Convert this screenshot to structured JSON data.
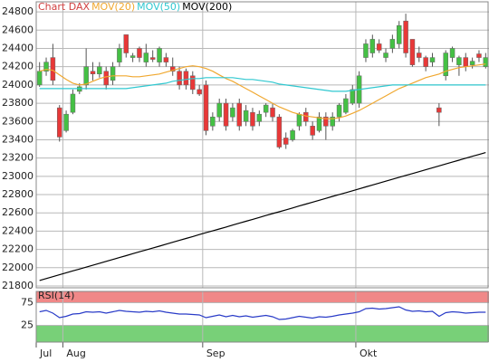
{
  "chart_data": [
    {
      "type": "candlestick",
      "categories": [
        null,
        null,
        null,
        null,
        "Aug",
        null,
        null,
        null,
        null,
        null,
        null,
        null,
        null,
        null,
        null,
        null,
        null,
        null,
        null,
        null,
        null,
        null,
        null,
        null,
        null,
        "Sep",
        null,
        null,
        null,
        null,
        null,
        null,
        null,
        null,
        null,
        null,
        null,
        null,
        null,
        null,
        null,
        null,
        null,
        null,
        null,
        null,
        null,
        null,
        "Okt",
        null,
        null,
        null,
        null,
        null,
        null,
        null,
        null,
        null,
        null,
        null,
        null,
        null,
        null,
        null,
        null,
        null,
        null,
        null
      ],
      "first_label": "Jul",
      "series": [
        {
          "name": "Chart DAX",
          "color": "#d04040",
          "up_color": "#44c044",
          "down_color": "#e83838",
          "open": [
            24000,
            24150,
            24300,
            23750,
            23500,
            23700,
            23930,
            24000,
            24150,
            24120,
            24150,
            24050,
            24250,
            24550,
            24300,
            24400,
            24250,
            24300,
            24250,
            24300,
            24200,
            24150,
            24150,
            24100,
            23950,
            24000,
            23550,
            23650,
            23800,
            23650,
            23800,
            23600,
            23700,
            23600,
            23700,
            23750,
            23650,
            23420,
            23400,
            23550,
            23700,
            23550,
            23500,
            23650,
            23550,
            23650,
            23700,
            23800,
            23800,
            24300,
            24350,
            24450,
            24300,
            24400,
            24450,
            24700,
            24500,
            24350,
            24300,
            24250,
            23750,
            24100,
            24300,
            24220,
            24300,
            24220,
            24340,
            24200
          ],
          "high": [
            24250,
            24300,
            24450,
            23780,
            23720,
            23950,
            24020,
            24400,
            24250,
            24250,
            24200,
            24250,
            24450,
            24550,
            24350,
            24420,
            24450,
            24380,
            24420,
            24350,
            24300,
            24200,
            24180,
            24150,
            24000,
            24050,
            23700,
            23850,
            23850,
            23800,
            23850,
            23780,
            23750,
            23720,
            23800,
            23800,
            23680,
            23480,
            23520,
            23700,
            23750,
            23600,
            23700,
            23700,
            23700,
            23800,
            23900,
            24000,
            24150,
            24500,
            24550,
            24500,
            24400,
            24550,
            24700,
            24780,
            24500,
            24420,
            24320,
            24350,
            23800,
            24380,
            24420,
            24320,
            24350,
            24300,
            24380,
            24350
          ],
          "low": [
            23980,
            24100,
            24000,
            23380,
            23480,
            23680,
            23900,
            23950,
            24050,
            24080,
            23950,
            24000,
            24200,
            24300,
            24250,
            24250,
            24200,
            24250,
            24200,
            24200,
            24100,
            23950,
            23950,
            23900,
            23880,
            23450,
            23500,
            23600,
            23500,
            23600,
            23500,
            23550,
            23500,
            23550,
            23650,
            23600,
            23300,
            23300,
            23380,
            23500,
            23550,
            23400,
            23480,
            23400,
            23500,
            23600,
            23680,
            23780,
            23750,
            24250,
            24300,
            24350,
            24250,
            24350,
            24400,
            24300,
            24200,
            24250,
            24150,
            24200,
            23550,
            24050,
            24250,
            24100,
            24150,
            24180,
            24250,
            24180
          ],
          "close": [
            24150,
            24250,
            24050,
            23430,
            23680,
            23900,
            23980,
            24200,
            24120,
            24200,
            24000,
            24200,
            24400,
            24350,
            24320,
            24300,
            24350,
            24280,
            24400,
            24250,
            24150,
            24000,
            24000,
            23950,
            23900,
            23500,
            23650,
            23800,
            23550,
            23750,
            23550,
            23720,
            23550,
            23680,
            23780,
            23650,
            23320,
            23350,
            23500,
            23680,
            23600,
            23450,
            23650,
            23550,
            23650,
            23780,
            23850,
            23950,
            24100,
            24450,
            24500,
            24380,
            24350,
            24500,
            24650,
            24350,
            24220,
            24300,
            24200,
            24300,
            23700,
            24350,
            24400,
            24300,
            24200,
            24260,
            24300,
            24300
          ]
        },
        {
          "name": "MOV(20)",
          "type": "line",
          "color": "#f0a830",
          "values": [
            24150,
            24170,
            24160,
            24110,
            24060,
            24020,
            24000,
            24010,
            24040,
            24070,
            24090,
            24100,
            24100,
            24100,
            24090,
            24090,
            24100,
            24110,
            24120,
            24140,
            24160,
            24180,
            24200,
            24210,
            24200,
            24180,
            24150,
            24110,
            24070,
            24040,
            24000,
            23960,
            23920,
            23880,
            23840,
            23800,
            23760,
            23730,
            23700,
            23680,
            23660,
            23650,
            23640,
            23630,
            23630,
            23640,
            23660,
            23690,
            23720,
            23760,
            23800,
            23840,
            23880,
            23920,
            23960,
            23990,
            24020,
            24050,
            24080,
            24100,
            24120,
            24150,
            24170,
            24190,
            24200,
            24210,
            24220,
            24230
          ]
        },
        {
          "name": "MOV(50)",
          "type": "line",
          "color": "#30c8d0",
          "values": [
            23960,
            23960,
            23960,
            23960,
            23960,
            23960,
            23960,
            23960,
            23960,
            23960,
            23960,
            23960,
            23960,
            23960,
            23970,
            23980,
            23990,
            24000,
            24010,
            24020,
            24040,
            24050,
            24060,
            24070,
            24070,
            24080,
            24080,
            24080,
            24080,
            24080,
            24070,
            24060,
            24060,
            24050,
            24040,
            24030,
            24010,
            24000,
            23990,
            23980,
            23970,
            23960,
            23950,
            23940,
            23930,
            23930,
            23930,
            23940,
            23950,
            23960,
            23970,
            23980,
            23990,
            24000,
            24000,
            24000,
            24000,
            24000,
            24000,
            24000,
            24000,
            24000,
            24000,
            24000,
            24000,
            24000,
            24000,
            24000
          ]
        },
        {
          "name": "MOV(200)",
          "type": "line",
          "color": "#000000",
          "values": [
            21860,
            21881,
            21902,
            21923,
            21944,
            21965,
            21985,
            22006,
            22027,
            22048,
            22069,
            22090,
            22111,
            22132,
            22153,
            22174,
            22194,
            22215,
            22236,
            22257,
            22278,
            22299,
            22320,
            22341,
            22362,
            22383,
            22403,
            22424,
            22445,
            22466,
            22487,
            22508,
            22529,
            22550,
            22571,
            22592,
            22612,
            22633,
            22654,
            22675,
            22696,
            22717,
            22738,
            22759,
            22780,
            22801,
            22821,
            22842,
            22863,
            22884,
            22905,
            22926,
            22947,
            22968,
            22989,
            23010,
            23030,
            23051,
            23072,
            23093,
            23114,
            23135,
            23156,
            23177,
            23198,
            23219,
            23239,
            23260
          ]
        }
      ],
      "ylim": [
        21780,
        24910
      ],
      "yticks": [
        21800,
        22000,
        22200,
        22400,
        22600,
        22800,
        23000,
        23200,
        23400,
        23600,
        23800,
        24000,
        24200,
        24400,
        24600,
        24800
      ],
      "grid": true
    },
    {
      "type": "line",
      "title": "RSI(14)",
      "series": [
        {
          "color": "#2a3cc8",
          "values": [
            55,
            58,
            52,
            42,
            45,
            50,
            51,
            55,
            54,
            55,
            52,
            55,
            58,
            56,
            55,
            54,
            56,
            55,
            57,
            54,
            52,
            50,
            50,
            49,
            48,
            42,
            45,
            48,
            44,
            47,
            44,
            46,
            43,
            45,
            47,
            44,
            38,
            39,
            42,
            45,
            43,
            41,
            44,
            43,
            45,
            48,
            50,
            52,
            55,
            62,
            63,
            61,
            62,
            64,
            66,
            59,
            56,
            57,
            55,
            56,
            45,
            53,
            55,
            54,
            52,
            53,
            54,
            54
          ]
        }
      ],
      "ylim": [
        0,
        100
      ],
      "yticks": [
        25,
        75
      ],
      "band_colors": [
        "#f08888",
        "#78d078"
      ]
    }
  ]
}
